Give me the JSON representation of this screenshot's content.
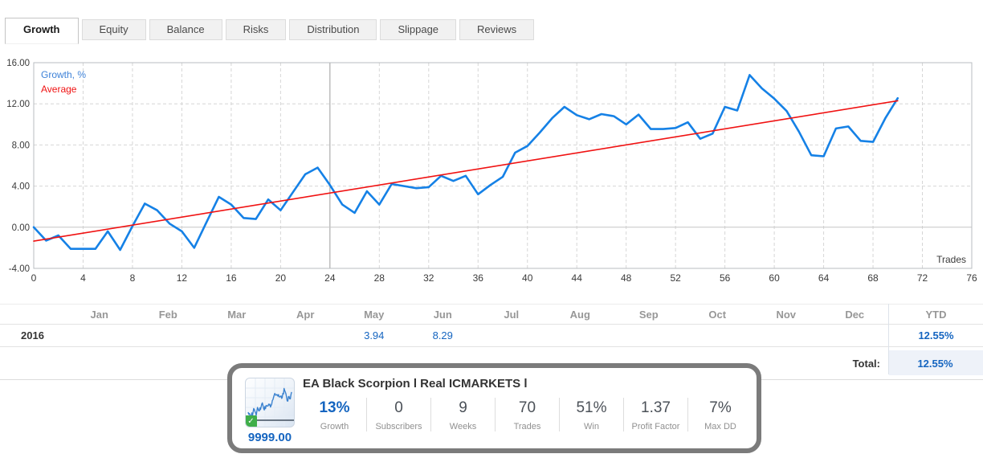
{
  "tabs": [
    {
      "label": "Growth",
      "active": true
    },
    {
      "label": "Equity",
      "active": false
    },
    {
      "label": "Balance",
      "active": false
    },
    {
      "label": "Risks",
      "active": false
    },
    {
      "label": "Distribution",
      "active": false
    },
    {
      "label": "Slippage",
      "active": false
    },
    {
      "label": "Reviews",
      "active": false
    }
  ],
  "chart_data": {
    "type": "line",
    "xlabel": "Trades",
    "xlim": [
      0,
      76
    ],
    "ylim": [
      -4,
      16
    ],
    "x_ticks": [
      0,
      4,
      8,
      12,
      16,
      20,
      24,
      28,
      32,
      36,
      40,
      44,
      48,
      52,
      56,
      60,
      64,
      68,
      72,
      76
    ],
    "y_ticks": [
      16,
      12,
      8,
      4,
      0,
      -4
    ],
    "y_tick_labels": [
      "16.00",
      "12.00",
      "8.00",
      "4.00",
      "0.00",
      "-4.00"
    ],
    "grid": "dashed",
    "vline_x": 24,
    "legend_position": "top-left",
    "legend": [
      {
        "label": "Growth, %",
        "color": "#3e82d8"
      },
      {
        "label": "Average",
        "color": "#f01212"
      }
    ],
    "series": [
      {
        "name": "Growth, %",
        "color": "#1581e6",
        "width": 2.6,
        "x": [
          0,
          1,
          2,
          3,
          4,
          5,
          6,
          7,
          8,
          9,
          10,
          11,
          12,
          13,
          14,
          15,
          16,
          17,
          18,
          19,
          20,
          21,
          22,
          23,
          24,
          25,
          26,
          27,
          28,
          29,
          30,
          31,
          32,
          33,
          34,
          35,
          36,
          37,
          38,
          39,
          40,
          41,
          42,
          43,
          44,
          45,
          46,
          47,
          48,
          49,
          50,
          51,
          52,
          53,
          54,
          55,
          56,
          57,
          58,
          59,
          60,
          61,
          62,
          63,
          64,
          65,
          66,
          67,
          68,
          69,
          70
        ],
        "values": [
          0.0,
          -1.3,
          -0.8,
          -2.1,
          -2.1,
          -2.1,
          -0.4,
          -2.2,
          0.1,
          2.3,
          1.65,
          0.35,
          -0.4,
          -2.0,
          0.5,
          2.95,
          2.2,
          0.9,
          0.8,
          2.7,
          1.65,
          3.4,
          5.15,
          5.8,
          4.1,
          2.2,
          1.4,
          3.5,
          2.2,
          4.2,
          4.0,
          3.8,
          3.9,
          5.0,
          4.5,
          5.0,
          3.2,
          4.1,
          4.9,
          7.25,
          7.9,
          9.2,
          10.6,
          11.7,
          10.9,
          10.5,
          11.0,
          10.8,
          10.0,
          10.95,
          9.55,
          9.55,
          9.65,
          10.2,
          8.6,
          9.1,
          11.7,
          11.35,
          14.8,
          13.5,
          12.5,
          11.3,
          9.3,
          7.0,
          6.9,
          9.6,
          9.8,
          8.4,
          8.3,
          10.6,
          12.55
        ]
      },
      {
        "name": "Average",
        "color": "#f01212",
        "width": 1.6,
        "x": [
          0,
          70
        ],
        "values": [
          -1.35,
          12.3
        ]
      }
    ]
  },
  "monthly_table": {
    "year": "2016",
    "columns": [
      "Jan",
      "Feb",
      "Mar",
      "Apr",
      "May",
      "Jun",
      "Jul",
      "Aug",
      "Sep",
      "Oct",
      "Nov",
      "Dec"
    ],
    "ytd_header": "YTD",
    "values": [
      "",
      "",
      "",
      "",
      "3.94",
      "8.29",
      "",
      "",
      "",
      "",
      "",
      ""
    ],
    "ytd_value": "12.55%",
    "total_label": "Total:",
    "total_value": "12.55%"
  },
  "signal_widget": {
    "title": "EA Black Scorpion l Real ICMARKETS l",
    "price": "9999.00",
    "badge": "check",
    "stats": [
      {
        "value": "13%",
        "label": "Growth",
        "highlight": true
      },
      {
        "value": "0",
        "label": "Subscribers",
        "highlight": false
      },
      {
        "value": "9",
        "label": "Weeks",
        "highlight": false
      },
      {
        "value": "70",
        "label": "Trades",
        "highlight": false
      },
      {
        "value": "51%",
        "label": "Win",
        "highlight": false
      },
      {
        "value": "1.37",
        "label": "Profit Factor",
        "highlight": false
      },
      {
        "value": "7%",
        "label": "Max DD",
        "highlight": false
      }
    ]
  },
  "colors": {
    "accent_blue": "#1565c0",
    "line_blue": "#1581e6",
    "line_red": "#f01212",
    "grid_dashed": "#d6d6d6",
    "grid_zero": "#c6c6c6",
    "plot_border": "#b8bcc0",
    "month_vline": "#9c9c9c"
  }
}
